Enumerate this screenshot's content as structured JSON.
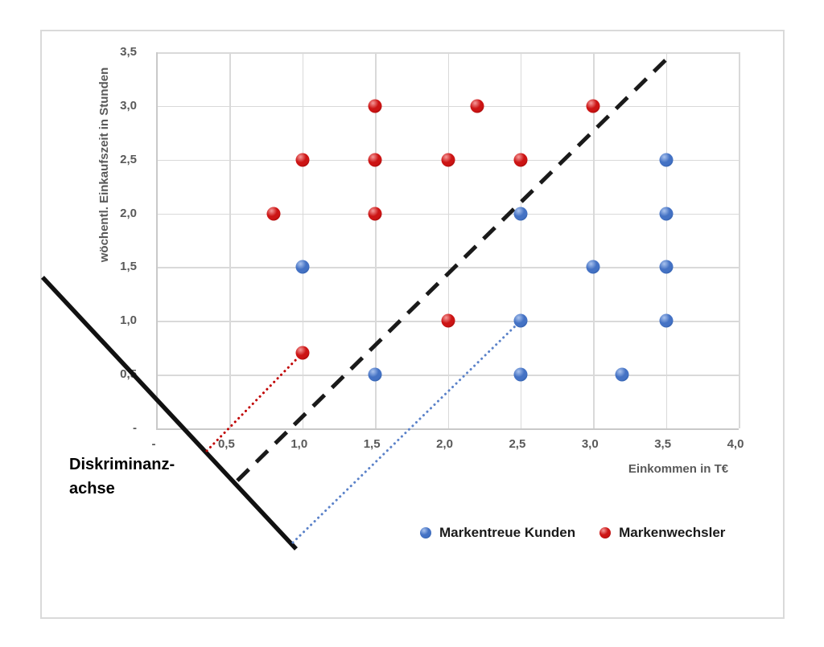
{
  "chart_data": {
    "type": "scatter",
    "title": "",
    "xlabel": "Einkommen in T€",
    "ylabel": "wöchentl. Einkaufszeit in Stunden",
    "xlim": [
      0,
      4.0
    ],
    "ylim": [
      0,
      3.5
    ],
    "grid": true,
    "legend_position": "bottom-center",
    "x_ticks": {
      "values": [
        0,
        0.5,
        1.0,
        1.5,
        2.0,
        2.5,
        3.0,
        3.5,
        4.0
      ],
      "labels": [
        "-",
        "0,5",
        "1,0",
        "1,5",
        "2,0",
        "2,5",
        "3,0",
        "3,5",
        "4,0"
      ]
    },
    "y_ticks": {
      "values": [
        0,
        0.5,
        1.0,
        1.5,
        2.0,
        2.5,
        3.0,
        3.5
      ],
      "labels": [
        "-",
        "0,5",
        "1,0",
        "1,5",
        "2,0",
        "2,5",
        "3,0",
        "3,5"
      ]
    },
    "series": [
      {
        "name": "Markentreue Kunden",
        "marker": {
          "fill": "#4472c4",
          "highlight": "#aac3ee",
          "edge": "#1f4e96"
        },
        "points": [
          [
            1.0,
            1.5
          ],
          [
            1.5,
            0.5
          ],
          [
            2.5,
            2.0
          ],
          [
            2.5,
            1.0
          ],
          [
            2.5,
            0.5
          ],
          [
            3.0,
            1.5
          ],
          [
            3.2,
            0.5
          ],
          [
            3.5,
            2.5
          ],
          [
            3.5,
            2.0
          ],
          [
            3.5,
            1.5
          ],
          [
            3.5,
            1.0
          ]
        ]
      },
      {
        "name": "Markenwechsler",
        "marker": {
          "fill": "#cc1414",
          "highlight": "#f59a9a",
          "edge": "#7d0202"
        },
        "points": [
          [
            0.8,
            2.0
          ],
          [
            1.0,
            2.5
          ],
          [
            1.0,
            0.7
          ],
          [
            1.5,
            3.0
          ],
          [
            1.5,
            2.5
          ],
          [
            1.5,
            2.0
          ],
          [
            2.0,
            2.5
          ],
          [
            2.0,
            1.0
          ],
          [
            2.2,
            3.0
          ],
          [
            2.5,
            2.5
          ],
          [
            3.0,
            3.0
          ]
        ]
      }
    ],
    "annotation_lines": [
      {
        "id": "discriminant-axis-line",
        "style": "solid",
        "color": "#111111",
        "width": 5.5,
        "from": [
          -0.786,
          1.406
        ],
        "to": [
          0.957,
          -1.122
        ]
      },
      {
        "id": "separator-line",
        "style": "dashed",
        "color": "#1a1a1a",
        "width": 5,
        "from": [
          0.553,
          -0.486
        ],
        "to": [
          3.524,
          3.463
        ]
      },
      {
        "id": "projection-markenwechsler",
        "style": "dotted",
        "color": "#c00000",
        "width": 3,
        "from": [
          0.343,
          -0.209
        ],
        "to": [
          1.0,
          0.7
        ]
      },
      {
        "id": "projection-markentreue",
        "style": "dotted",
        "color": "#5b82c9",
        "width": 3,
        "from": [
          0.935,
          -1.062
        ],
        "to": [
          2.5,
          1.0
        ]
      }
    ],
    "discriminant_label": {
      "line1": "Diskriminanz-",
      "line2": "achse"
    }
  },
  "colors": {
    "gridline": "#d9d9d9",
    "axis_line": "#c9c9c9",
    "tick_text": "#595959",
    "legend_text": "#1a1a1a"
  }
}
